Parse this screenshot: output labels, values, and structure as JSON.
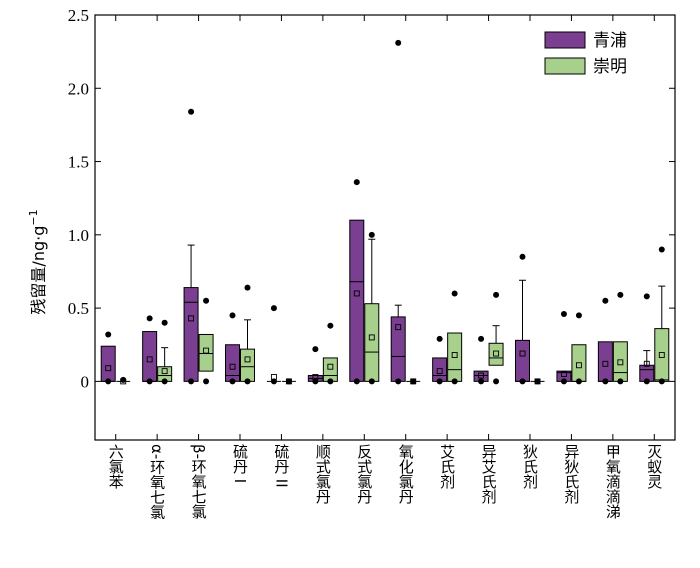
{
  "chart_data": {
    "type": "box",
    "title": "",
    "ylabel": "残留量/ng·g",
    "ylabel_sup": "−1",
    "xlabel": "",
    "ylim": [
      -0.4,
      2.5
    ],
    "yticks": [
      0,
      0.5,
      1.0,
      1.5,
      2.0,
      2.5
    ],
    "ytick_labels": [
      "0",
      "0.5",
      "1.0",
      "1.5",
      "2.0",
      "2.5"
    ],
    "categories": [
      "六氯苯",
      "α-环氧七氯",
      "β-环氧七氯",
      "硫丹 I",
      "硫丹 II",
      "顺式氯丹",
      "反式氯丹",
      "氧化氯丹",
      "艾氏剂",
      "异艾氏剂",
      "狄氏剂",
      "异狄氏剂",
      "甲氧滴滴涕",
      "灭蚁灵"
    ],
    "legend": {
      "position": "top-right"
    },
    "series": [
      {
        "name": "青浦",
        "color": "#7b3f91",
        "boxes": [
          {
            "q1": 0,
            "median": 0,
            "q3": 0.24,
            "whisker_low": 0,
            "whisker_high": 0.24,
            "mean": 0.09,
            "outliers": [
              0.32,
              0
            ]
          },
          {
            "q1": 0,
            "median": 0,
            "q3": 0.34,
            "whisker_low": 0,
            "whisker_high": 0.34,
            "mean": 0.15,
            "outliers": [
              0.43,
              0
            ]
          },
          {
            "q1": 0,
            "median": 0.54,
            "q3": 0.64,
            "whisker_low": 0,
            "whisker_high": 0.93,
            "mean": 0.43,
            "outliers": [
              1.84,
              0
            ]
          },
          {
            "q1": 0,
            "median": 0.04,
            "q3": 0.25,
            "whisker_low": 0,
            "whisker_high": 0.25,
            "mean": 0.1,
            "outliers": [
              0.45,
              0
            ]
          },
          {
            "q1": 0,
            "median": 0,
            "q3": 0,
            "whisker_low": 0,
            "whisker_high": 0,
            "mean": 0.03,
            "outliers": [
              0.5,
              0
            ]
          },
          {
            "q1": 0,
            "median": 0.02,
            "q3": 0.04,
            "whisker_low": 0,
            "whisker_high": 0.04,
            "mean": 0.03,
            "outliers": [
              0.22,
              0
            ]
          },
          {
            "q1": 0,
            "median": 0.68,
            "q3": 1.1,
            "whisker_low": 0,
            "whisker_high": 1.1,
            "mean": 0.6,
            "outliers": [
              1.36,
              0
            ]
          },
          {
            "q1": 0,
            "median": 0.17,
            "q3": 0.44,
            "whisker_low": 0,
            "whisker_high": 0.52,
            "mean": 0.37,
            "outliers": [
              2.31,
              0
            ]
          },
          {
            "q1": 0,
            "median": 0.04,
            "q3": 0.16,
            "whisker_low": 0,
            "whisker_high": 0.16,
            "mean": 0.07,
            "outliers": [
              0.29,
              0
            ]
          },
          {
            "q1": 0,
            "median": 0.04,
            "q3": 0.07,
            "whisker_low": 0,
            "whisker_high": 0.07,
            "mean": 0.04,
            "outliers": [
              0.29,
              0
            ]
          },
          {
            "q1": 0,
            "median": 0,
            "q3": 0.28,
            "whisker_low": 0,
            "whisker_high": 0.69,
            "mean": 0.19,
            "outliers": [
              0.85,
              0
            ]
          },
          {
            "q1": 0,
            "median": 0.06,
            "q3": 0.07,
            "whisker_low": 0,
            "whisker_high": 0.07,
            "mean": 0.05,
            "outliers": [
              0.46,
              0
            ]
          },
          {
            "q1": 0,
            "median": 0,
            "q3": 0.27,
            "whisker_low": 0,
            "whisker_high": 0.27,
            "mean": 0.12,
            "outliers": [
              0.55,
              0
            ]
          },
          {
            "q1": 0,
            "median": 0.08,
            "q3": 0.11,
            "whisker_low": 0,
            "whisker_high": 0.21,
            "mean": 0.12,
            "outliers": [
              0.58,
              0
            ]
          }
        ]
      },
      {
        "name": "崇明",
        "color": "#a8d08d",
        "boxes": [
          {
            "q1": 0,
            "median": 0,
            "q3": 0,
            "whisker_low": 0,
            "whisker_high": 0,
            "mean": 0,
            "outliers": [
              0.01
            ]
          },
          {
            "q1": 0,
            "median": 0.04,
            "q3": 0.1,
            "whisker_low": 0,
            "whisker_high": 0.23,
            "mean": 0.07,
            "outliers": [
              0.4,
              0
            ]
          },
          {
            "q1": 0.07,
            "median": 0.19,
            "q3": 0.32,
            "whisker_low": 0,
            "whisker_high": 0.32,
            "mean": 0.21,
            "outliers": [
              0.55,
              0
            ]
          },
          {
            "q1": 0,
            "median": 0.1,
            "q3": 0.22,
            "whisker_low": 0,
            "whisker_high": 0.42,
            "mean": 0.15,
            "outliers": [
              0.64,
              0
            ]
          },
          {
            "q1": 0,
            "median": 0,
            "q3": 0,
            "whisker_low": 0,
            "whisker_high": 0,
            "mean": 0,
            "outliers": [
              0
            ]
          },
          {
            "q1": 0,
            "median": 0.04,
            "q3": 0.16,
            "whisker_low": 0,
            "whisker_high": 0.16,
            "mean": 0.1,
            "outliers": [
              0.38,
              0
            ]
          },
          {
            "q1": 0,
            "median": 0.2,
            "q3": 0.53,
            "whisker_low": 0,
            "whisker_high": 0.97,
            "mean": 0.3,
            "outliers": [
              1.0,
              0
            ]
          },
          {
            "q1": 0,
            "median": 0,
            "q3": 0,
            "whisker_low": 0,
            "whisker_high": 0,
            "mean": 0,
            "outliers": [
              0
            ]
          },
          {
            "q1": 0,
            "median": 0.08,
            "q3": 0.33,
            "whisker_low": 0,
            "whisker_high": 0.33,
            "mean": 0.18,
            "outliers": [
              0.6,
              0
            ]
          },
          {
            "q1": 0.11,
            "median": 0.16,
            "q3": 0.26,
            "whisker_low": 0,
            "whisker_high": 0.38,
            "mean": 0.19,
            "outliers": [
              0.59,
              0
            ]
          },
          {
            "q1": 0,
            "median": 0,
            "q3": 0,
            "whisker_low": 0,
            "whisker_high": 0,
            "mean": 0,
            "outliers": [
              0
            ]
          },
          {
            "q1": 0,
            "median": 0,
            "q3": 0.25,
            "whisker_low": 0,
            "whisker_high": 0.25,
            "mean": 0.11,
            "outliers": [
              0.45,
              0
            ]
          },
          {
            "q1": 0,
            "median": 0.06,
            "q3": 0.27,
            "whisker_low": 0,
            "whisker_high": 0.27,
            "mean": 0.13,
            "outliers": [
              0.59,
              0
            ]
          },
          {
            "q1": 0,
            "median": 0.01,
            "q3": 0.36,
            "whisker_low": 0,
            "whisker_high": 0.65,
            "mean": 0.18,
            "outliers": [
              0.9,
              0
            ]
          }
        ]
      }
    ]
  }
}
